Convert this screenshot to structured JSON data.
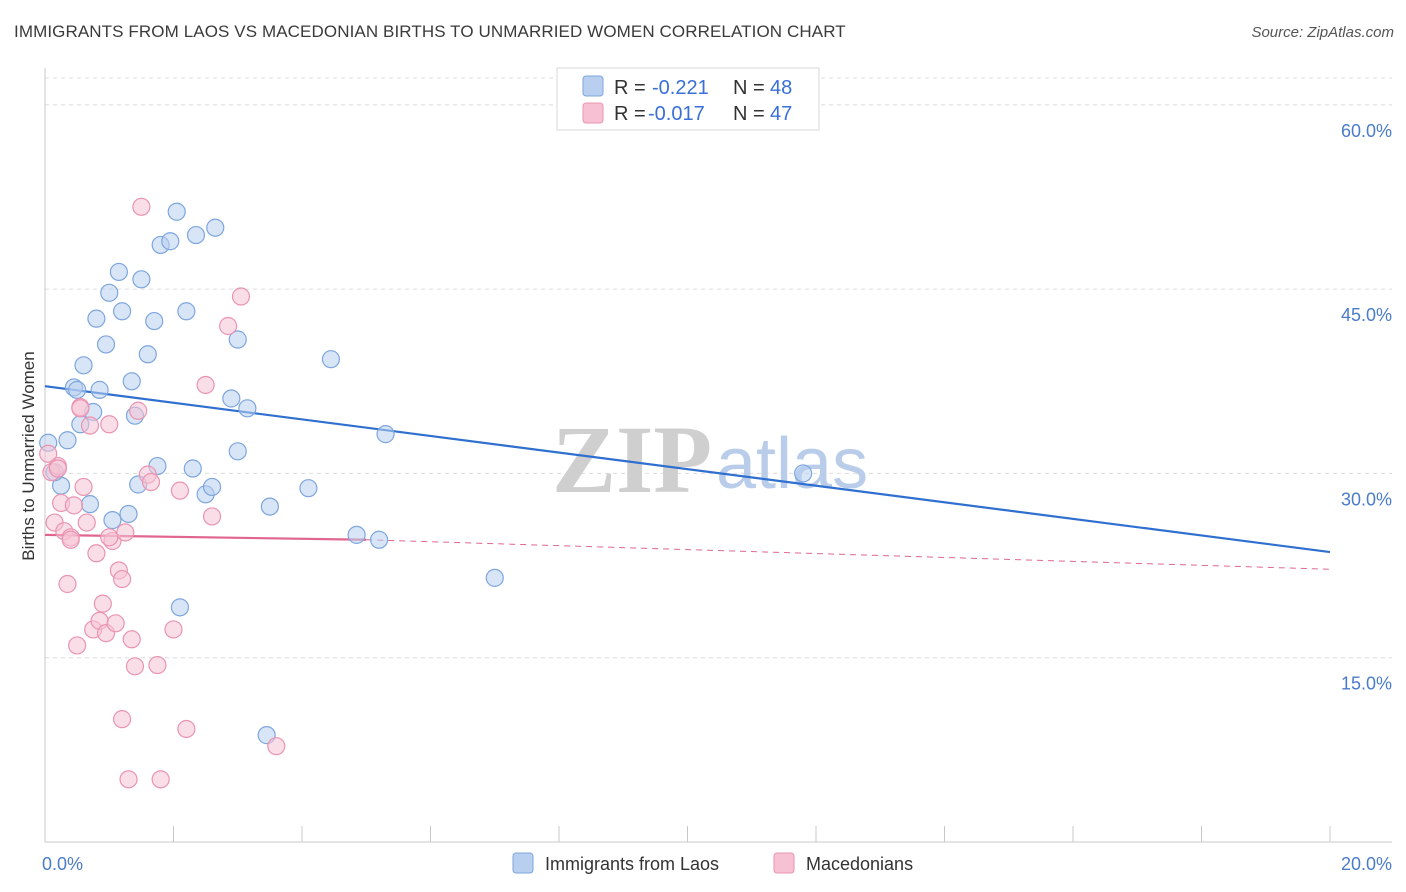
{
  "title": "IMMIGRANTS FROM LAOS VS MACEDONIAN BIRTHS TO UNMARRIED WOMEN CORRELATION CHART",
  "source": "Source: ZipAtlas.com",
  "watermark": {
    "zip": "ZIP",
    "atlas": "atlas"
  },
  "colors": {
    "blue_fill": "#b8cff0",
    "blue_stroke": "#7ea6de",
    "blue_line": "#2f6fcf",
    "pink_fill": "#f6c2d3",
    "pink_stroke": "#ea94b1",
    "pink_line": "#e0668f",
    "grid": "#dcdcdc",
    "axis_text": "#4a7cc9"
  },
  "legend": {
    "r_label": "R =",
    "n_label": "N =",
    "series": [
      {
        "r": "-0.221",
        "n": "48"
      },
      {
        "r": "-0.017",
        "n": "47"
      }
    ]
  },
  "chart_data": {
    "type": "scatter",
    "title": "IMMIGRANTS FROM LAOS VS MACEDONIAN BIRTHS TO UNMARRIED WOMEN CORRELATION CHART",
    "xlabel": "",
    "ylabel": "Births to Unmarried Women",
    "xlim": [
      0,
      21
    ],
    "ylim": [
      0,
      63
    ],
    "x_ticks": [
      {
        "value": 0,
        "label": "0.0%"
      },
      {
        "value": 20,
        "label": "20.0%"
      }
    ],
    "y_ticks": [
      {
        "value": 15,
        "label": "15.0%"
      },
      {
        "value": 30,
        "label": "30.0%"
      },
      {
        "value": 45,
        "label": "45.0%"
      },
      {
        "value": 60,
        "label": "60.0%"
      }
    ],
    "series": [
      {
        "name": "Immigrants from Laos",
        "color": "#7ea6de",
        "points": [
          [
            0.05,
            32.5
          ],
          [
            0.25,
            29.0
          ],
          [
            0.35,
            32.7
          ],
          [
            0.45,
            37.0
          ],
          [
            0.55,
            34.0
          ],
          [
            0.6,
            38.8
          ],
          [
            0.7,
            27.5
          ],
          [
            0.75,
            35.0
          ],
          [
            0.8,
            42.6
          ],
          [
            0.85,
            36.8
          ],
          [
            0.95,
            40.5
          ],
          [
            1.0,
            44.7
          ],
          [
            1.05,
            26.2
          ],
          [
            1.15,
            46.4
          ],
          [
            1.2,
            43.2
          ],
          [
            1.3,
            26.7
          ],
          [
            1.35,
            37.5
          ],
          [
            1.4,
            34.7
          ],
          [
            1.45,
            29.1
          ],
          [
            1.5,
            45.8
          ],
          [
            1.6,
            39.7
          ],
          [
            1.7,
            42.4
          ],
          [
            1.8,
            48.6
          ],
          [
            1.75,
            30.6
          ],
          [
            1.95,
            48.9
          ],
          [
            2.05,
            51.3
          ],
          [
            2.1,
            19.1
          ],
          [
            2.2,
            43.2
          ],
          [
            2.3,
            30.4
          ],
          [
            2.35,
            49.4
          ],
          [
            2.5,
            28.3
          ],
          [
            2.6,
            28.9
          ],
          [
            2.65,
            50.0
          ],
          [
            2.9,
            36.1
          ],
          [
            3.0,
            40.9
          ],
          [
            3.15,
            35.3
          ],
          [
            3.0,
            31.8
          ],
          [
            3.5,
            27.3
          ],
          [
            3.45,
            8.7
          ],
          [
            4.1,
            28.8
          ],
          [
            4.45,
            39.3
          ],
          [
            4.85,
            25.0
          ],
          [
            5.3,
            33.2
          ],
          [
            5.2,
            24.6
          ],
          [
            7.0,
            21.5
          ],
          [
            11.8,
            30.0
          ],
          [
            0.15,
            30.1
          ],
          [
            0.5,
            36.8
          ]
        ]
      },
      {
        "name": "Macedonians",
        "color": "#ea94b1",
        "points": [
          [
            0.1,
            30.1
          ],
          [
            0.15,
            26.0
          ],
          [
            0.2,
            30.6
          ],
          [
            0.25,
            27.6
          ],
          [
            0.3,
            25.3
          ],
          [
            0.35,
            21.0
          ],
          [
            0.4,
            24.8
          ],
          [
            0.45,
            27.4
          ],
          [
            0.5,
            16.0
          ],
          [
            0.55,
            35.4
          ],
          [
            0.6,
            28.9
          ],
          [
            0.65,
            26.0
          ],
          [
            0.7,
            33.9
          ],
          [
            0.75,
            17.3
          ],
          [
            0.8,
            23.5
          ],
          [
            0.85,
            18.0
          ],
          [
            0.9,
            19.4
          ],
          [
            0.95,
            17.0
          ],
          [
            1.0,
            34.0
          ],
          [
            1.05,
            24.5
          ],
          [
            1.1,
            17.8
          ],
          [
            1.15,
            22.1
          ],
          [
            1.2,
            10.0
          ],
          [
            1.25,
            25.2
          ],
          [
            1.3,
            5.1
          ],
          [
            1.35,
            16.5
          ],
          [
            1.4,
            14.3
          ],
          [
            1.45,
            35.1
          ],
          [
            1.5,
            51.7
          ],
          [
            1.6,
            29.9
          ],
          [
            1.65,
            29.3
          ],
          [
            1.75,
            14.4
          ],
          [
            1.8,
            5.1
          ],
          [
            2.0,
            17.3
          ],
          [
            2.1,
            28.6
          ],
          [
            2.2,
            9.2
          ],
          [
            2.5,
            37.2
          ],
          [
            2.6,
            26.5
          ],
          [
            2.85,
            42.0
          ],
          [
            3.05,
            44.4
          ],
          [
            3.6,
            7.8
          ],
          [
            0.05,
            31.6
          ],
          [
            0.2,
            30.4
          ],
          [
            1.2,
            21.4
          ],
          [
            0.55,
            35.3
          ],
          [
            1.0,
            24.8
          ],
          [
            0.4,
            24.6
          ]
        ]
      }
    ],
    "trendlines": [
      {
        "series": "Immigrants from Laos",
        "x": [
          0,
          20
        ],
        "y": [
          37.1,
          23.6
        ],
        "style": "solid"
      },
      {
        "series": "Macedonians",
        "x": [
          0,
          5.0
        ],
        "y": [
          25.0,
          24.6
        ],
        "style": "solid"
      },
      {
        "series": "Macedonians",
        "x": [
          5.0,
          20
        ],
        "y": [
          24.6,
          22.2
        ],
        "style": "dashed"
      }
    ],
    "legend_position": "top-center",
    "grid": true
  }
}
